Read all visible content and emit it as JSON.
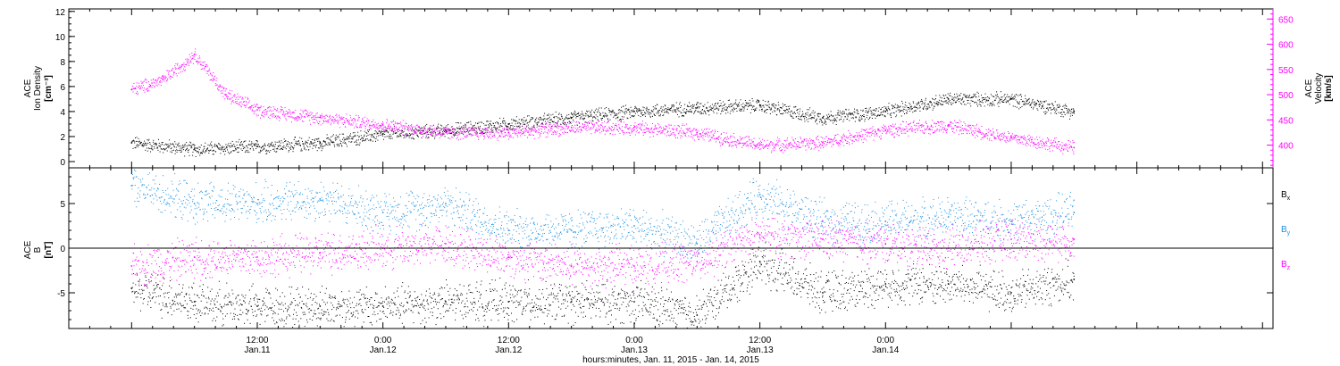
{
  "chart_data": [
    {
      "type": "scatter",
      "panel": "top",
      "title": "",
      "ylabel_left_lines": [
        "ACE",
        "Ion Density",
        "[cm⁻³]"
      ],
      "ylabel_right_lines": [
        "ACE",
        "Velocity",
        "[km/s]"
      ],
      "ylim_left": [
        -0.5,
        12.2
      ],
      "ylim_right": [
        355,
        670
      ],
      "yticks_left": [
        "0",
        "2",
        "4",
        "6",
        "8",
        "10",
        "12"
      ],
      "yticks_right": [
        "400",
        "450",
        "500",
        "550",
        "600",
        "650"
      ],
      "grid": false,
      "series": [
        {
          "name": "Ion Density",
          "axis": "left",
          "color": "#000000",
          "x_hours": [
            0,
            6,
            12,
            18,
            24,
            30,
            36,
            42,
            48,
            54,
            60,
            66,
            72,
            78,
            84,
            90
          ],
          "values": [
            1.5,
            1.0,
            1.2,
            1.5,
            2.2,
            2.5,
            3.0,
            3.5,
            4.0,
            4.3,
            4.5,
            3.5,
            4.0,
            5.0,
            5.0,
            4.0
          ]
        },
        {
          "name": "Velocity",
          "axis": "right",
          "color": "#ff00ff",
          "x_hours": [
            0,
            3,
            6,
            9,
            12,
            18,
            24,
            30,
            36,
            42,
            48,
            54,
            60,
            66,
            72,
            78,
            84,
            90
          ],
          "values": [
            510,
            530,
            580,
            500,
            470,
            455,
            440,
            425,
            425,
            435,
            435,
            425,
            400,
            405,
            430,
            440,
            415,
            395
          ]
        }
      ]
    },
    {
      "type": "scatter",
      "panel": "bottom",
      "title": "",
      "ylabel_lines": [
        "ACE",
        "B",
        "[nT]"
      ],
      "ylim": [
        -9,
        9
      ],
      "yticks": [
        "-5",
        "0",
        "5"
      ],
      "zero_line": true,
      "grid": false,
      "legend_position": "right",
      "series": [
        {
          "name": "Bx",
          "color": "#000000",
          "x_hours": [
            0,
            6,
            12,
            18,
            24,
            30,
            36,
            42,
            48,
            54,
            60,
            66,
            72,
            78,
            84,
            90
          ],
          "values": [
            -4.5,
            -6.0,
            -6.5,
            -6.5,
            -6.5,
            -6.0,
            -6.0,
            -6.0,
            -6.0,
            -7.5,
            -1.5,
            -5.0,
            -4.0,
            -4.0,
            -5.0,
            -3.5
          ]
        },
        {
          "name": "By",
          "color": "#1e90e0",
          "x_hours": [
            0,
            6,
            12,
            18,
            24,
            30,
            36,
            42,
            48,
            54,
            60,
            66,
            72,
            78,
            84,
            90
          ],
          "values": [
            7.0,
            5.0,
            5.0,
            5.5,
            4.0,
            5.0,
            2.0,
            2.0,
            2.5,
            0.5,
            6.0,
            3.0,
            3.0,
            3.5,
            3.0,
            4.0
          ]
        },
        {
          "name": "Bz",
          "color": "#ff00ff",
          "x_hours": [
            0,
            6,
            12,
            18,
            24,
            30,
            36,
            42,
            48,
            54,
            60,
            66,
            72,
            78,
            84,
            90
          ],
          "values": [
            -2.0,
            -1.0,
            -1.0,
            -0.5,
            0.0,
            0.5,
            -1.0,
            -2.0,
            -2.0,
            -1.5,
            1.5,
            1.0,
            0.5,
            0.0,
            1.0,
            1.0
          ]
        }
      ]
    }
  ],
  "legend_labels": [
    {
      "base": "B",
      "sub": "x",
      "color": "#000000"
    },
    {
      "base": "B",
      "sub": "y",
      "color": "#1e90e0"
    },
    {
      "base": "B",
      "sub": "z",
      "color": "#ff00ff"
    }
  ],
  "x_axis": {
    "range_hours": [
      -6,
      109
    ],
    "ticks": [
      {
        "hours": 12,
        "time": "12:00",
        "date": "Jan.11"
      },
      {
        "hours": 24,
        "time": "0:00",
        "date": "Jan.12"
      },
      {
        "hours": 36,
        "time": "12:00",
        "date": "Jan.12"
      },
      {
        "hours": 48,
        "time": "0:00",
        "date": "Jan.13"
      },
      {
        "hours": 60,
        "time": "12:00",
        "date": "Jan.13"
      },
      {
        "hours": 72,
        "time": "0:00",
        "date": "Jan.14"
      }
    ],
    "xlabel": "hours:minutes, Jan. 11, 2015 - Jan. 14, 2015"
  }
}
